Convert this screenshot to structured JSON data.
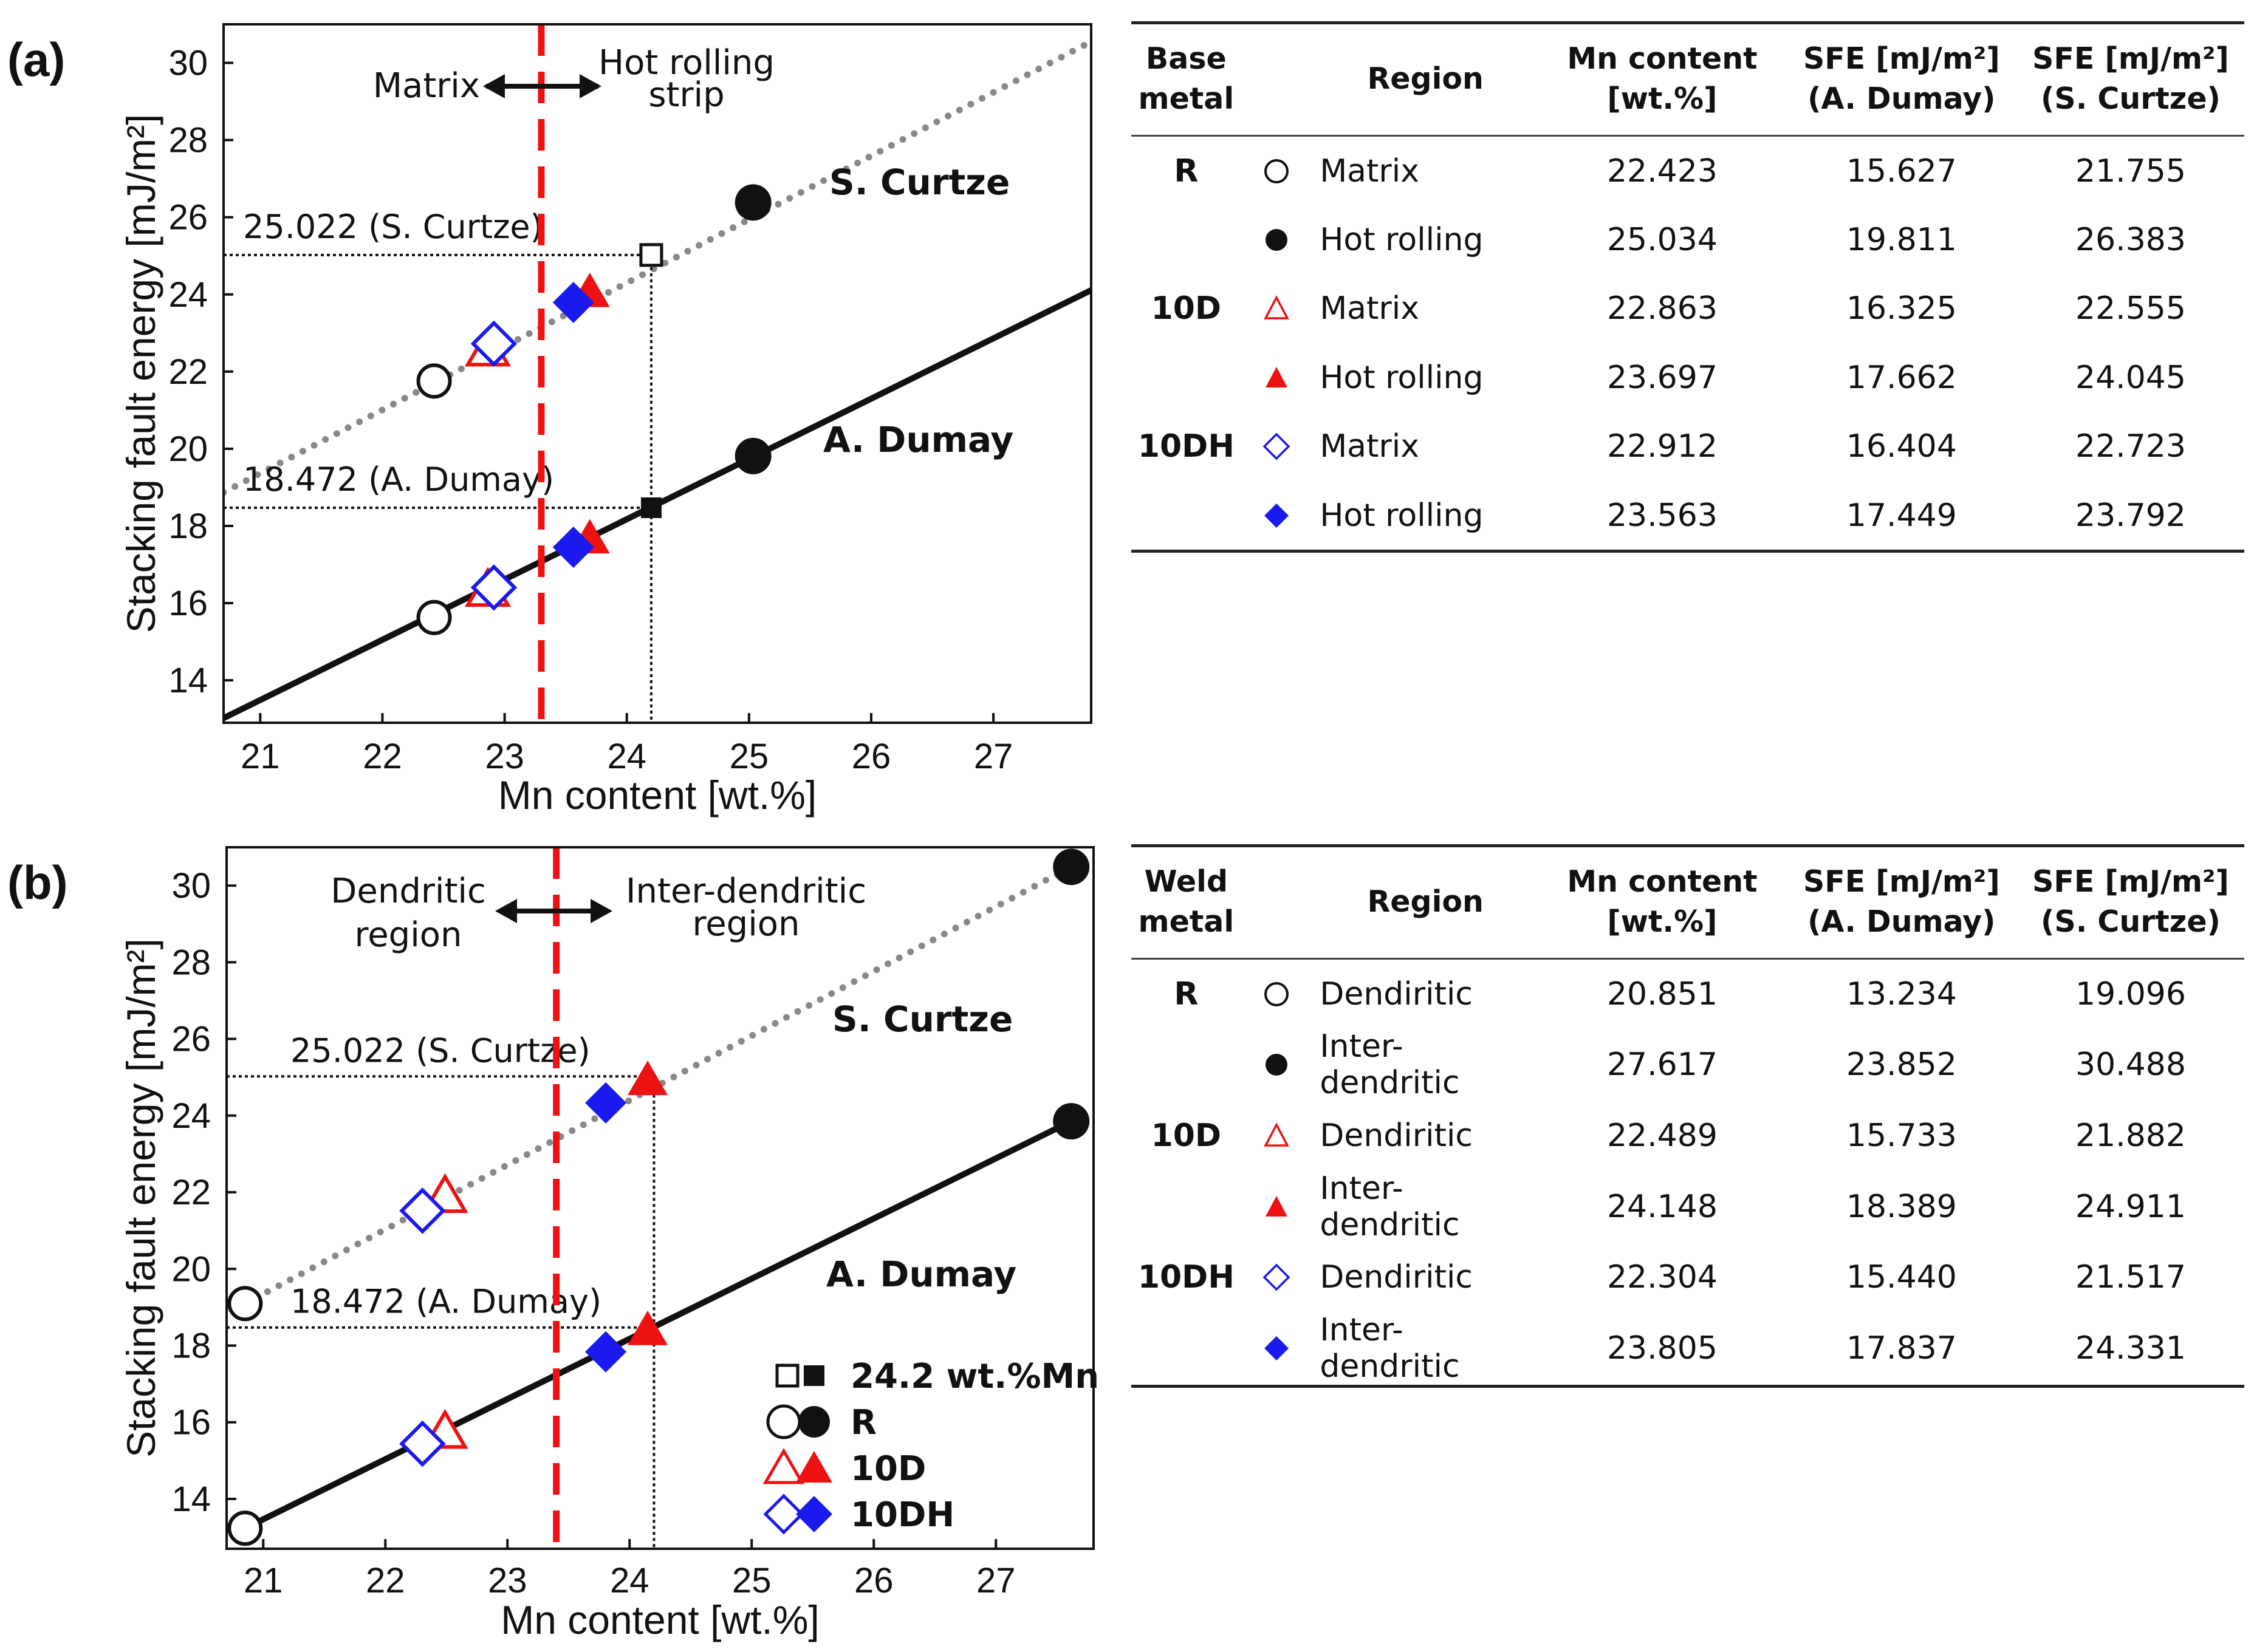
{
  "colors": {
    "red": "#ee1111",
    "blue": "#1a1aee",
    "gray": "#888888",
    "black": "#111111"
  },
  "chart_data": [
    {
      "panel_label": "(a)",
      "type": "scatter",
      "xlabel": "Mn content [wt.%]",
      "ylabel": "Stacking fault energy [mJ/m²]",
      "xlim": [
        20.7,
        27.8
      ],
      "ylim": [
        12.9,
        31.0
      ],
      "xticks": [
        "21",
        "22",
        "23",
        "24",
        "25",
        "26",
        "27"
      ],
      "yticks": [
        "14",
        "16",
        "18",
        "20",
        "22",
        "24",
        "26",
        "28",
        "30"
      ],
      "boundary_x": 23.3,
      "ref_x": 24.2,
      "ref_sc": 25.022,
      "ref_ad": 18.472,
      "ref_sc_label": "25.022 (S. Curtze)",
      "ref_ad_label": "18.472 (A. Dumay)",
      "line_sc_label": "S. Curtze",
      "line_ad_label": "A. Dumay",
      "line_sc": [
        [
          20.7,
          18.87
        ],
        [
          27.8,
          30.55
        ]
      ],
      "line_ad": [
        [
          20.7,
          13.02
        ],
        [
          27.8,
          24.11
        ]
      ],
      "region_left": "Matrix",
      "region_right_1": "Hot rolling",
      "region_right_2": "strip",
      "series": [
        {
          "name": "R",
          "marker": "circle",
          "color": "#111111",
          "points": [
            {
              "x": 22.423,
              "ad": 15.627,
              "sc": 21.755,
              "filled": false
            },
            {
              "x": 25.034,
              "ad": 19.811,
              "sc": 26.383,
              "filled": true
            }
          ]
        },
        {
          "name": "10D",
          "marker": "triangle",
          "color": "#ee1111",
          "points": [
            {
              "x": 22.863,
              "ad": 16.325,
              "sc": 22.555,
              "filled": false
            },
            {
              "x": 23.697,
              "ad": 17.662,
              "sc": 24.045,
              "filled": true
            }
          ]
        },
        {
          "name": "10DH",
          "marker": "diamond",
          "color": "#1a1aee",
          "points": [
            {
              "x": 22.912,
              "ad": 16.404,
              "sc": 22.723,
              "filled": false
            },
            {
              "x": 23.563,
              "ad": 17.449,
              "sc": 23.792,
              "filled": true
            }
          ]
        }
      ]
    },
    {
      "panel_label": "(b)",
      "type": "scatter",
      "xlabel": "Mn content [wt.%]",
      "ylabel": "Stacking fault energy [mJ/m²]",
      "xlim": [
        20.7,
        27.8
      ],
      "ylim": [
        12.7,
        31.0
      ],
      "xticks": [
        "21",
        "22",
        "23",
        "24",
        "25",
        "26",
        "27"
      ],
      "yticks": [
        "14",
        "16",
        "18",
        "20",
        "22",
        "24",
        "26",
        "28",
        "30"
      ],
      "boundary_x": 23.4,
      "ref_x": 24.2,
      "ref_sc": 25.022,
      "ref_ad": 18.472,
      "ref_sc_label": "25.022 (S. Curtze)",
      "ref_ad_label": "18.472 (A. Dumay)",
      "line_sc_label": "S. Curtze",
      "line_ad_label": "A. Dumay",
      "line_sc": [
        [
          20.851,
          19.096
        ],
        [
          27.617,
          30.488
        ]
      ],
      "line_ad": [
        [
          20.851,
          13.234
        ],
        [
          27.617,
          23.852
        ]
      ],
      "region_left_1": "Dendritic",
      "region_left_2": "region",
      "region_right_1": "Inter-dendritic",
      "region_right_2": "region",
      "legend": [
        {
          "marker": "square",
          "color": "#111111",
          "label": "24.2 wt.%Mn"
        },
        {
          "marker": "circle",
          "color": "#111111",
          "label": "R"
        },
        {
          "marker": "triangle",
          "color": "#ee1111",
          "label": "10D"
        },
        {
          "marker": "diamond",
          "color": "#1a1aee",
          "label": "10DH"
        }
      ],
      "series": [
        {
          "name": "R",
          "marker": "circle",
          "color": "#111111",
          "points": [
            {
              "x": 20.851,
              "ad": 13.234,
              "sc": 19.096,
              "filled": false
            },
            {
              "x": 27.617,
              "ad": 23.852,
              "sc": 30.488,
              "filled": true
            }
          ]
        },
        {
          "name": "10D",
          "marker": "triangle",
          "color": "#ee1111",
          "points": [
            {
              "x": 22.489,
              "ad": 15.733,
              "sc": 21.882,
              "filled": false
            },
            {
              "x": 24.148,
              "ad": 18.389,
              "sc": 24.911,
              "filled": true
            }
          ]
        },
        {
          "name": "10DH",
          "marker": "diamond",
          "color": "#1a1aee",
          "points": [
            {
              "x": 22.304,
              "ad": 15.44,
              "sc": 21.517,
              "filled": false
            },
            {
              "x": 23.805,
              "ad": 17.837,
              "sc": 24.331,
              "filled": true
            }
          ]
        }
      ]
    }
  ],
  "tables": [
    {
      "headers": {
        "group": "Base metal",
        "region": "Region",
        "mn_1": "Mn content",
        "mn_2": "[wt.%]",
        "sd_1": "SFE [mJ/m²]",
        "sd_2": "(A. Dumay)",
        "sc_1": "SFE [mJ/m²]",
        "sc_2": "(S. Curtze)"
      },
      "rows": [
        {
          "group": "R",
          "symbol": "circle-open",
          "region": "Matrix",
          "mn": "22.423",
          "sfe_ad": "15.627",
          "sfe_sc": "21.755"
        },
        {
          "group": "",
          "symbol": "circle-filled",
          "region": "Hot rolling",
          "mn": "25.034",
          "sfe_ad": "19.811",
          "sfe_sc": "26.383"
        },
        {
          "group": "10D",
          "symbol": "triangle-open",
          "region": "Matrix",
          "mn": "22.863",
          "sfe_ad": "16.325",
          "sfe_sc": "22.555"
        },
        {
          "group": "",
          "symbol": "triangle-filled",
          "region": "Hot rolling",
          "mn": "23.697",
          "sfe_ad": "17.662",
          "sfe_sc": "24.045"
        },
        {
          "group": "10DH",
          "symbol": "diamond-open",
          "region": "Matrix",
          "mn": "22.912",
          "sfe_ad": "16.404",
          "sfe_sc": "22.723"
        },
        {
          "group": "",
          "symbol": "diamond-filled",
          "region": "Hot rolling",
          "mn": "23.563",
          "sfe_ad": "17.449",
          "sfe_sc": "23.792"
        }
      ]
    },
    {
      "headers": {
        "group": "Weld metal",
        "region": "Region",
        "mn_1": "Mn content",
        "mn_2": "[wt.%]",
        "sd_1": "SFE [mJ/m²]",
        "sd_2": "(A. Dumay)",
        "sc_1": "SFE [mJ/m²]",
        "sc_2": "(S. Curtze)"
      },
      "rows": [
        {
          "group": "R",
          "symbol": "circle-open",
          "region": "Dendiritic",
          "mn": "20.851",
          "sfe_ad": "13.234",
          "sfe_sc": "19.096"
        },
        {
          "group": "",
          "symbol": "circle-filled",
          "region": "Inter-dendritic",
          "mn": "27.617",
          "sfe_ad": "23.852",
          "sfe_sc": "30.488"
        },
        {
          "group": "10D",
          "symbol": "triangle-open",
          "region": "Dendiritic",
          "mn": "22.489",
          "sfe_ad": "15.733",
          "sfe_sc": "21.882"
        },
        {
          "group": "",
          "symbol": "triangle-filled",
          "region": "Inter-dendritic",
          "mn": "24.148",
          "sfe_ad": "18.389",
          "sfe_sc": "24.911"
        },
        {
          "group": "10DH",
          "symbol": "diamond-open",
          "region": "Dendiritic",
          "mn": "22.304",
          "sfe_ad": "15.440",
          "sfe_sc": "21.517"
        },
        {
          "group": "",
          "symbol": "diamond-filled",
          "region": "Inter-dendritic",
          "mn": "23.805",
          "sfe_ad": "17.837",
          "sfe_sc": "24.331"
        }
      ]
    }
  ]
}
